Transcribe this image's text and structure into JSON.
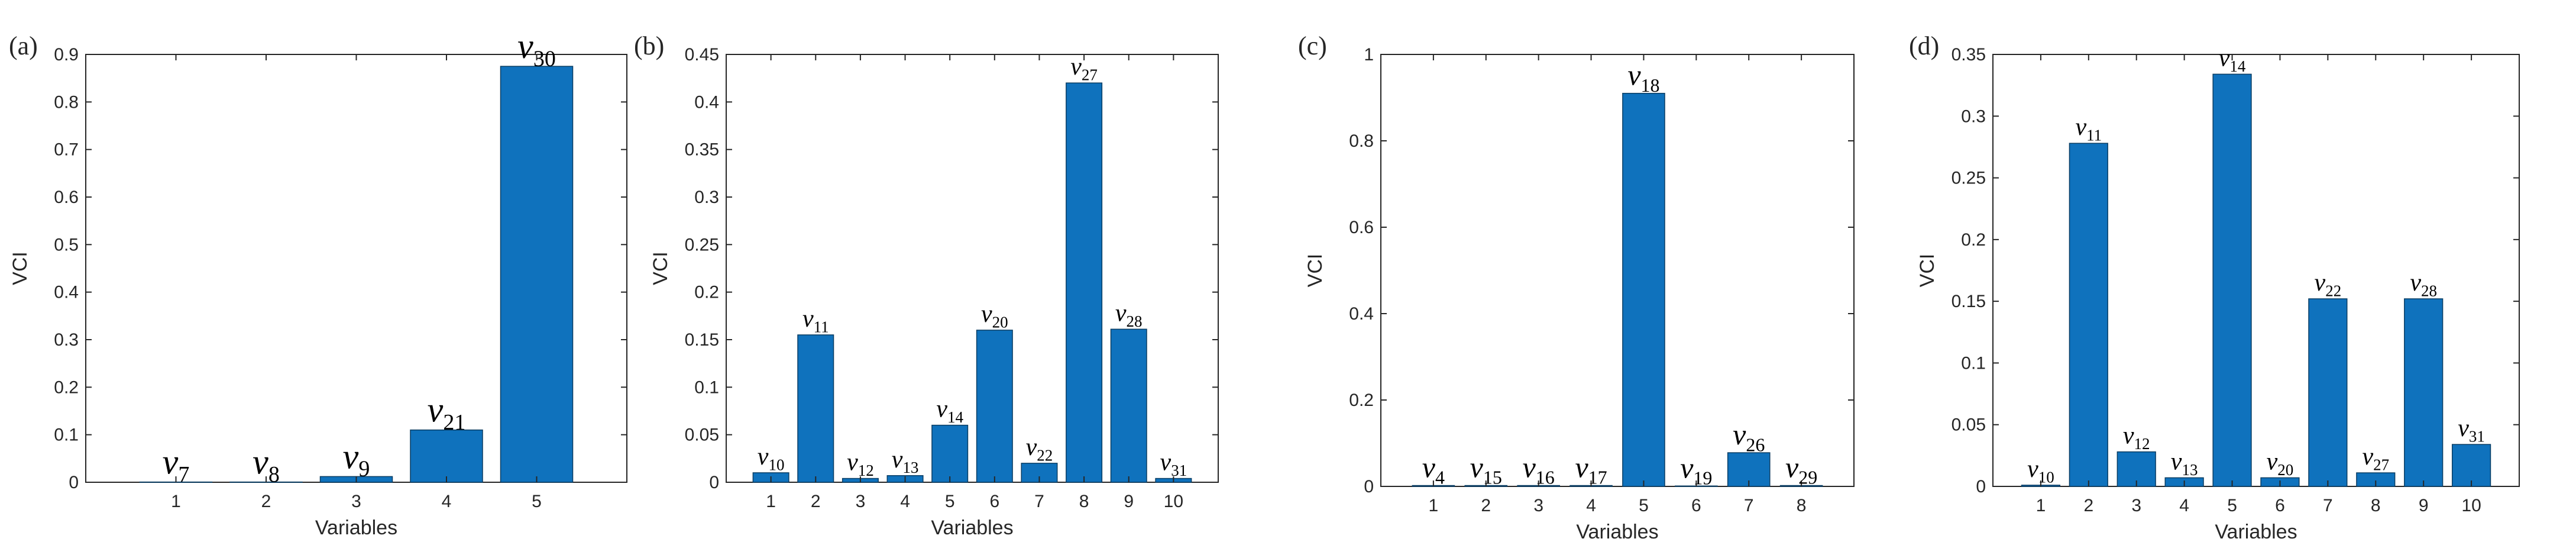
{
  "colors": {
    "bar": "#0f72bd",
    "bar_edge": "#0a3d63",
    "axis": "#262626"
  },
  "chart_data": [
    {
      "type": "bar",
      "panel": "(a)",
      "categories": [
        "1",
        "2",
        "3",
        "4",
        "5"
      ],
      "values": [
        0.0005,
        0.0005,
        0.012,
        0.11,
        0.875
      ],
      "bar_labels": [
        {
          "base": "v",
          "sub": "7"
        },
        {
          "base": "v",
          "sub": "8"
        },
        {
          "base": "v",
          "sub": "9"
        },
        {
          "base": "v",
          "sub": "21"
        },
        {
          "base": "v",
          "sub": "30"
        }
      ],
      "ylim": [
        0,
        0.9
      ],
      "yticks": [
        0,
        0.1,
        0.2,
        0.3,
        0.4,
        0.5,
        0.6,
        0.7,
        0.8,
        0.9
      ],
      "ytick_labels": [
        "0",
        "0.1",
        "0.2",
        "0.3",
        "0.4",
        "0.5",
        "0.6",
        "0.7",
        "0.8",
        "0.9"
      ],
      "xlim": [
        0,
        6
      ],
      "xlabel": "Variables",
      "ylabel": "VCI"
    },
    {
      "type": "bar",
      "panel": "(b)",
      "categories": [
        "1",
        "2",
        "3",
        "4",
        "5",
        "6",
        "7",
        "8",
        "9",
        "10"
      ],
      "values": [
        0.01,
        0.155,
        0.004,
        0.007,
        0.06,
        0.16,
        0.02,
        0.42,
        0.161,
        0.004
      ],
      "bar_labels": [
        {
          "base": "v",
          "sub": "10"
        },
        {
          "base": "v",
          "sub": "11"
        },
        {
          "base": "v",
          "sub": "12"
        },
        {
          "base": "v",
          "sub": "13"
        },
        {
          "base": "v",
          "sub": "14"
        },
        {
          "base": "v",
          "sub": "20"
        },
        {
          "base": "v",
          "sub": "22"
        },
        {
          "base": "v",
          "sub": "27"
        },
        {
          "base": "v",
          "sub": "28"
        },
        {
          "base": "v",
          "sub": "31"
        }
      ],
      "ylim": [
        0,
        0.45
      ],
      "yticks": [
        0,
        0.05,
        0.1,
        0.15,
        0.2,
        0.25,
        0.3,
        0.35,
        0.4,
        0.45
      ],
      "ytick_labels": [
        "0",
        "0.05",
        "0.1",
        "0.15",
        "0.2",
        "0.25",
        "0.3",
        "0.35",
        "0.4",
        "0.45"
      ],
      "xlim": [
        0,
        11
      ],
      "xlabel": "Variables",
      "ylabel": "VCI"
    },
    {
      "type": "bar",
      "panel": "(c)",
      "categories": [
        "1",
        "2",
        "3",
        "4",
        "5",
        "6",
        "7",
        "8"
      ],
      "values": [
        0.002,
        0.002,
        0.002,
        0.002,
        0.91,
        0.001,
        0.078,
        0.002
      ],
      "bar_labels": [
        {
          "base": "v",
          "sub": "4"
        },
        {
          "base": "v",
          "sub": "15"
        },
        {
          "base": "v",
          "sub": "16"
        },
        {
          "base": "v",
          "sub": "17"
        },
        {
          "base": "v",
          "sub": "18"
        },
        {
          "base": "v",
          "sub": "19"
        },
        {
          "base": "v",
          "sub": "26"
        },
        {
          "base": "v",
          "sub": "29"
        }
      ],
      "ylim": [
        0,
        1
      ],
      "yticks": [
        0,
        0.2,
        0.4,
        0.6,
        0.8,
        1
      ],
      "ytick_labels": [
        "0",
        "0.2",
        "0.4",
        "0.6",
        "0.8",
        "1"
      ],
      "xlim": [
        0,
        9
      ],
      "xlabel": "Variables",
      "ylabel": "VCI"
    },
    {
      "type": "bar",
      "panel": "(d)",
      "categories": [
        "1",
        "2",
        "3",
        "4",
        "5",
        "6",
        "7",
        "8",
        "9",
        "10"
      ],
      "values": [
        0.001,
        0.278,
        0.028,
        0.007,
        0.334,
        0.007,
        0.152,
        0.011,
        0.152,
        0.034
      ],
      "bar_labels": [
        {
          "base": "v",
          "sub": "10"
        },
        {
          "base": "v",
          "sub": "11"
        },
        {
          "base": "v",
          "sub": "12"
        },
        {
          "base": "v",
          "sub": "13"
        },
        {
          "base": "v",
          "sub": "14"
        },
        {
          "base": "v",
          "sub": "20"
        },
        {
          "base": "v",
          "sub": "22"
        },
        {
          "base": "v",
          "sub": "27"
        },
        {
          "base": "v",
          "sub": "28"
        },
        {
          "base": "v",
          "sub": "31"
        }
      ],
      "ylim": [
        0,
        0.35
      ],
      "yticks": [
        0,
        0.05,
        0.1,
        0.15,
        0.2,
        0.25,
        0.3,
        0.35
      ],
      "ytick_labels": [
        "0",
        "0.05",
        "0.1",
        "0.15",
        "0.2",
        "0.25",
        "0.3",
        "0.35"
      ],
      "xlim": [
        0,
        11
      ],
      "xlabel": "Variables",
      "ylabel": "VCI"
    }
  ]
}
